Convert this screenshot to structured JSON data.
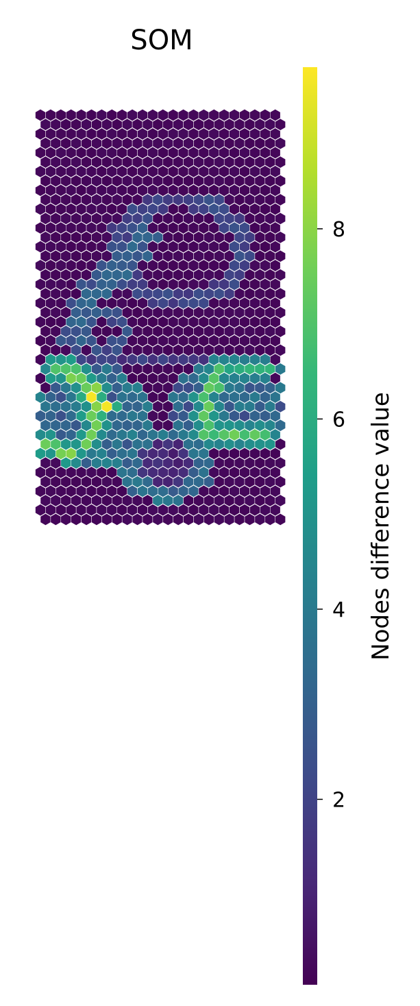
{
  "chart_data": {
    "type": "heatmap",
    "title": "SOM",
    "grid": "hexagonal",
    "shape": [
      44,
      24
    ],
    "colormap": "viridis",
    "vmin": 0.05,
    "vmax": 9.7,
    "colorbar": {
      "label": "Nodes difference value",
      "ticks": [
        2,
        4,
        6,
        8
      ],
      "tick_labels": [
        "2",
        "4",
        "6",
        "8"
      ]
    },
    "features": {
      "background": 0.15,
      "upper_ring": {
        "center_row": 14.3,
        "center_col": 13.5,
        "radius": 5.4,
        "value": 2.1
      },
      "upper_branch": {
        "points": [
          [
            13,
            10
          ],
          [
            20,
            4
          ],
          [
            24,
            3
          ]
        ],
        "value": 2.8
      },
      "left_loop": {
        "center_row": 23.0,
        "center_col": 6.0,
        "radius": 2.0,
        "value": 2.2
      },
      "band_row": 26,
      "lower_left_lobe": {
        "center_row": 32,
        "center_col": 5,
        "value": 3.6
      },
      "lower_right_lobe": {
        "center_row": 31,
        "center_col": 18,
        "value": 3.4
      },
      "lower_ring": {
        "center_row": 37.2,
        "center_col": 12.0,
        "radius": 3.3,
        "value": 3.6
      },
      "bright_paths": [
        {
          "points": [
            [
              27,
              1
            ],
            [
              27,
              3
            ],
            [
              30,
              5
            ],
            [
              34,
              5
            ],
            [
              36,
              3
            ],
            [
              35,
              0
            ]
          ],
          "value": 7.6
        },
        {
          "points": [
            [
              30,
              5
            ],
            [
              31,
              6
            ]
          ],
          "value": 9.6
        },
        {
          "points": [
            [
              27,
              17
            ],
            [
              31,
              16
            ],
            [
              34,
              16
            ],
            [
              34,
              22
            ]
          ],
          "value": 7.2
        },
        {
          "points": [
            [
              27,
              17
            ],
            [
              27,
              22
            ]
          ],
          "value": 6.2
        }
      ]
    }
  }
}
